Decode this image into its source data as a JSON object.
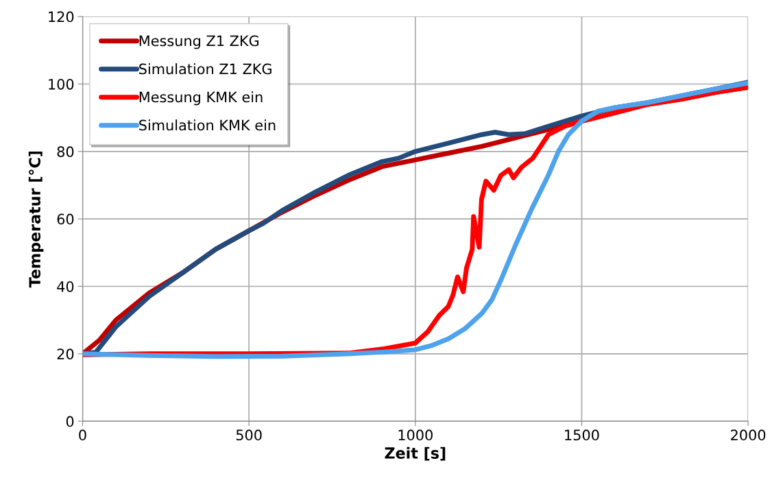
{
  "chart_data": {
    "type": "line",
    "xlabel": "Zeit [s]",
    "ylabel": "Temperatur [°C]",
    "xlim": [
      0,
      2000
    ],
    "xticks": [
      0,
      500,
      1000,
      1500,
      2000
    ],
    "ylim": [
      0,
      120
    ],
    "yticks": [
      0,
      20,
      40,
      60,
      80,
      100,
      120
    ],
    "grid": true,
    "legend": "top left",
    "line_style": "solid",
    "marker": "none",
    "series": [
      {
        "name": "Messung Z1 ZKG",
        "color": "#c00000",
        "x": [
          0,
          50,
          100,
          200,
          300,
          400,
          500,
          600,
          700,
          800,
          900,
          1000,
          1100,
          1200,
          1300,
          1400,
          1500,
          1600,
          1700,
          1800,
          1900,
          2000
        ],
        "values": [
          20,
          24,
          30,
          38,
          44,
          51,
          56.5,
          62,
          67,
          71.5,
          75.5,
          77.5,
          79.5,
          81.5,
          84,
          86.5,
          89,
          91.5,
          94,
          95.5,
          97.5,
          99
        ]
      },
      {
        "name": "Simulation Z1 ZKG",
        "color": "#234b7c",
        "x": [
          0,
          40,
          100,
          200,
          300,
          400,
          500,
          540,
          600,
          700,
          800,
          900,
          950,
          1000,
          1100,
          1200,
          1240,
          1280,
          1330,
          1400,
          1500,
          1600,
          1700,
          1800,
          1900,
          2000
        ],
        "values": [
          20,
          20.5,
          28,
          37,
          44,
          51,
          56.5,
          58.5,
          62.5,
          68,
          73,
          77,
          78,
          80,
          82.5,
          85,
          85.7,
          85,
          85.3,
          87.5,
          90.5,
          93,
          94.5,
          96.5,
          98.5,
          100.5
        ]
      },
      {
        "name": "Messung KMK ein",
        "color": "#ff0000",
        "x": [
          0,
          200,
          500,
          800,
          907,
          1000,
          1038,
          1072,
          1099,
          1113,
          1127,
          1144,
          1154,
          1171,
          1175,
          1192,
          1199,
          1212,
          1236,
          1257,
          1281,
          1295,
          1319,
          1353,
          1400,
          1450,
          1500,
          1600,
          1700,
          1800,
          1900,
          2000
        ],
        "values": [
          19.7,
          20,
          20,
          20.2,
          21.5,
          23.2,
          26.6,
          31.4,
          34,
          37.4,
          42.8,
          38.4,
          45.5,
          51,
          60.7,
          51.6,
          65.8,
          71.2,
          68.5,
          72.9,
          74.6,
          72.2,
          75.3,
          78,
          85,
          87.5,
          89,
          91.5,
          94,
          95.5,
          97.5,
          99
        ]
      },
      {
        "name": "Simulation KMK ein",
        "color": "#4ea3ec",
        "x": [
          0,
          200,
          400,
          600,
          800,
          900,
          1000,
          1050,
          1100,
          1150,
          1200,
          1230,
          1260,
          1300,
          1350,
          1400,
          1430,
          1460,
          1500,
          1550,
          1600,
          1700,
          1800,
          1900,
          2000
        ],
        "values": [
          20,
          19.5,
          19.2,
          19.3,
          20,
          20.5,
          21.2,
          22.5,
          24.5,
          27.5,
          32,
          36,
          42.5,
          52,
          63,
          73,
          80,
          85,
          89,
          92,
          93,
          94.5,
          96.5,
          98.5,
          100.3
        ]
      }
    ]
  }
}
